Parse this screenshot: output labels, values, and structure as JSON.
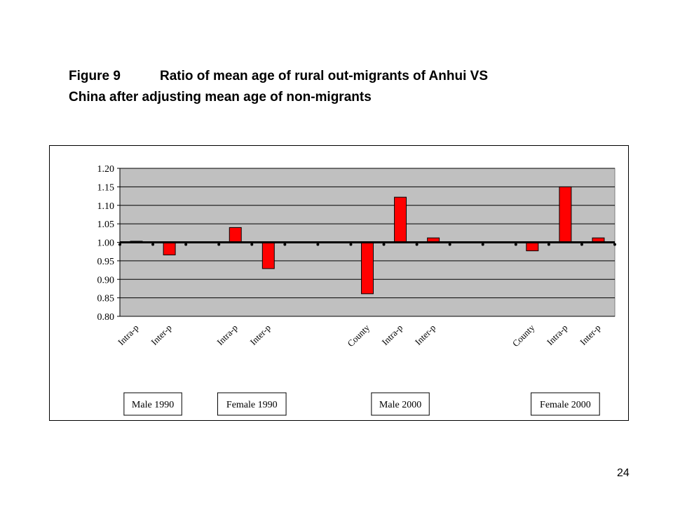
{
  "page": {
    "title_prefix": "Figure 9",
    "title_line1_rest": "Ratio of mean age of rural out-migrants of Anhui VS",
    "title_line2": "China after adjusting mean age of non-migrants",
    "page_number": "24"
  },
  "chart_data": {
    "type": "bar",
    "ylim": [
      0.8,
      1.2
    ],
    "yticks": [
      "1.20",
      "1.15",
      "1.10",
      "1.05",
      "1.00",
      "0.95",
      "0.90",
      "0.85",
      "0.80"
    ],
    "baseline": 1.0,
    "grid": true,
    "bar_color": "#ff0000",
    "plot_background": "#c0c0c0",
    "categories": [
      "Intra-p",
      "Inter-p",
      "",
      "Intra-p",
      "Inter-p",
      "",
      "",
      "County",
      "Intra-p",
      "Inter-p",
      "",
      "",
      "County",
      "Intra-p",
      "Inter-p"
    ],
    "values": [
      1.003,
      0.966,
      null,
      1.04,
      0.929,
      null,
      null,
      0.861,
      1.122,
      1.012,
      null,
      null,
      0.977,
      1.15,
      1.012
    ],
    "groups": [
      {
        "label": "Male 1990",
        "first": 0,
        "last": 1
      },
      {
        "label": "Female 1990",
        "first": 3,
        "last": 4
      },
      {
        "label": "Male 2000",
        "first": 7,
        "last": 9
      },
      {
        "label": "Female 2000",
        "first": 12,
        "last": 14
      }
    ]
  }
}
